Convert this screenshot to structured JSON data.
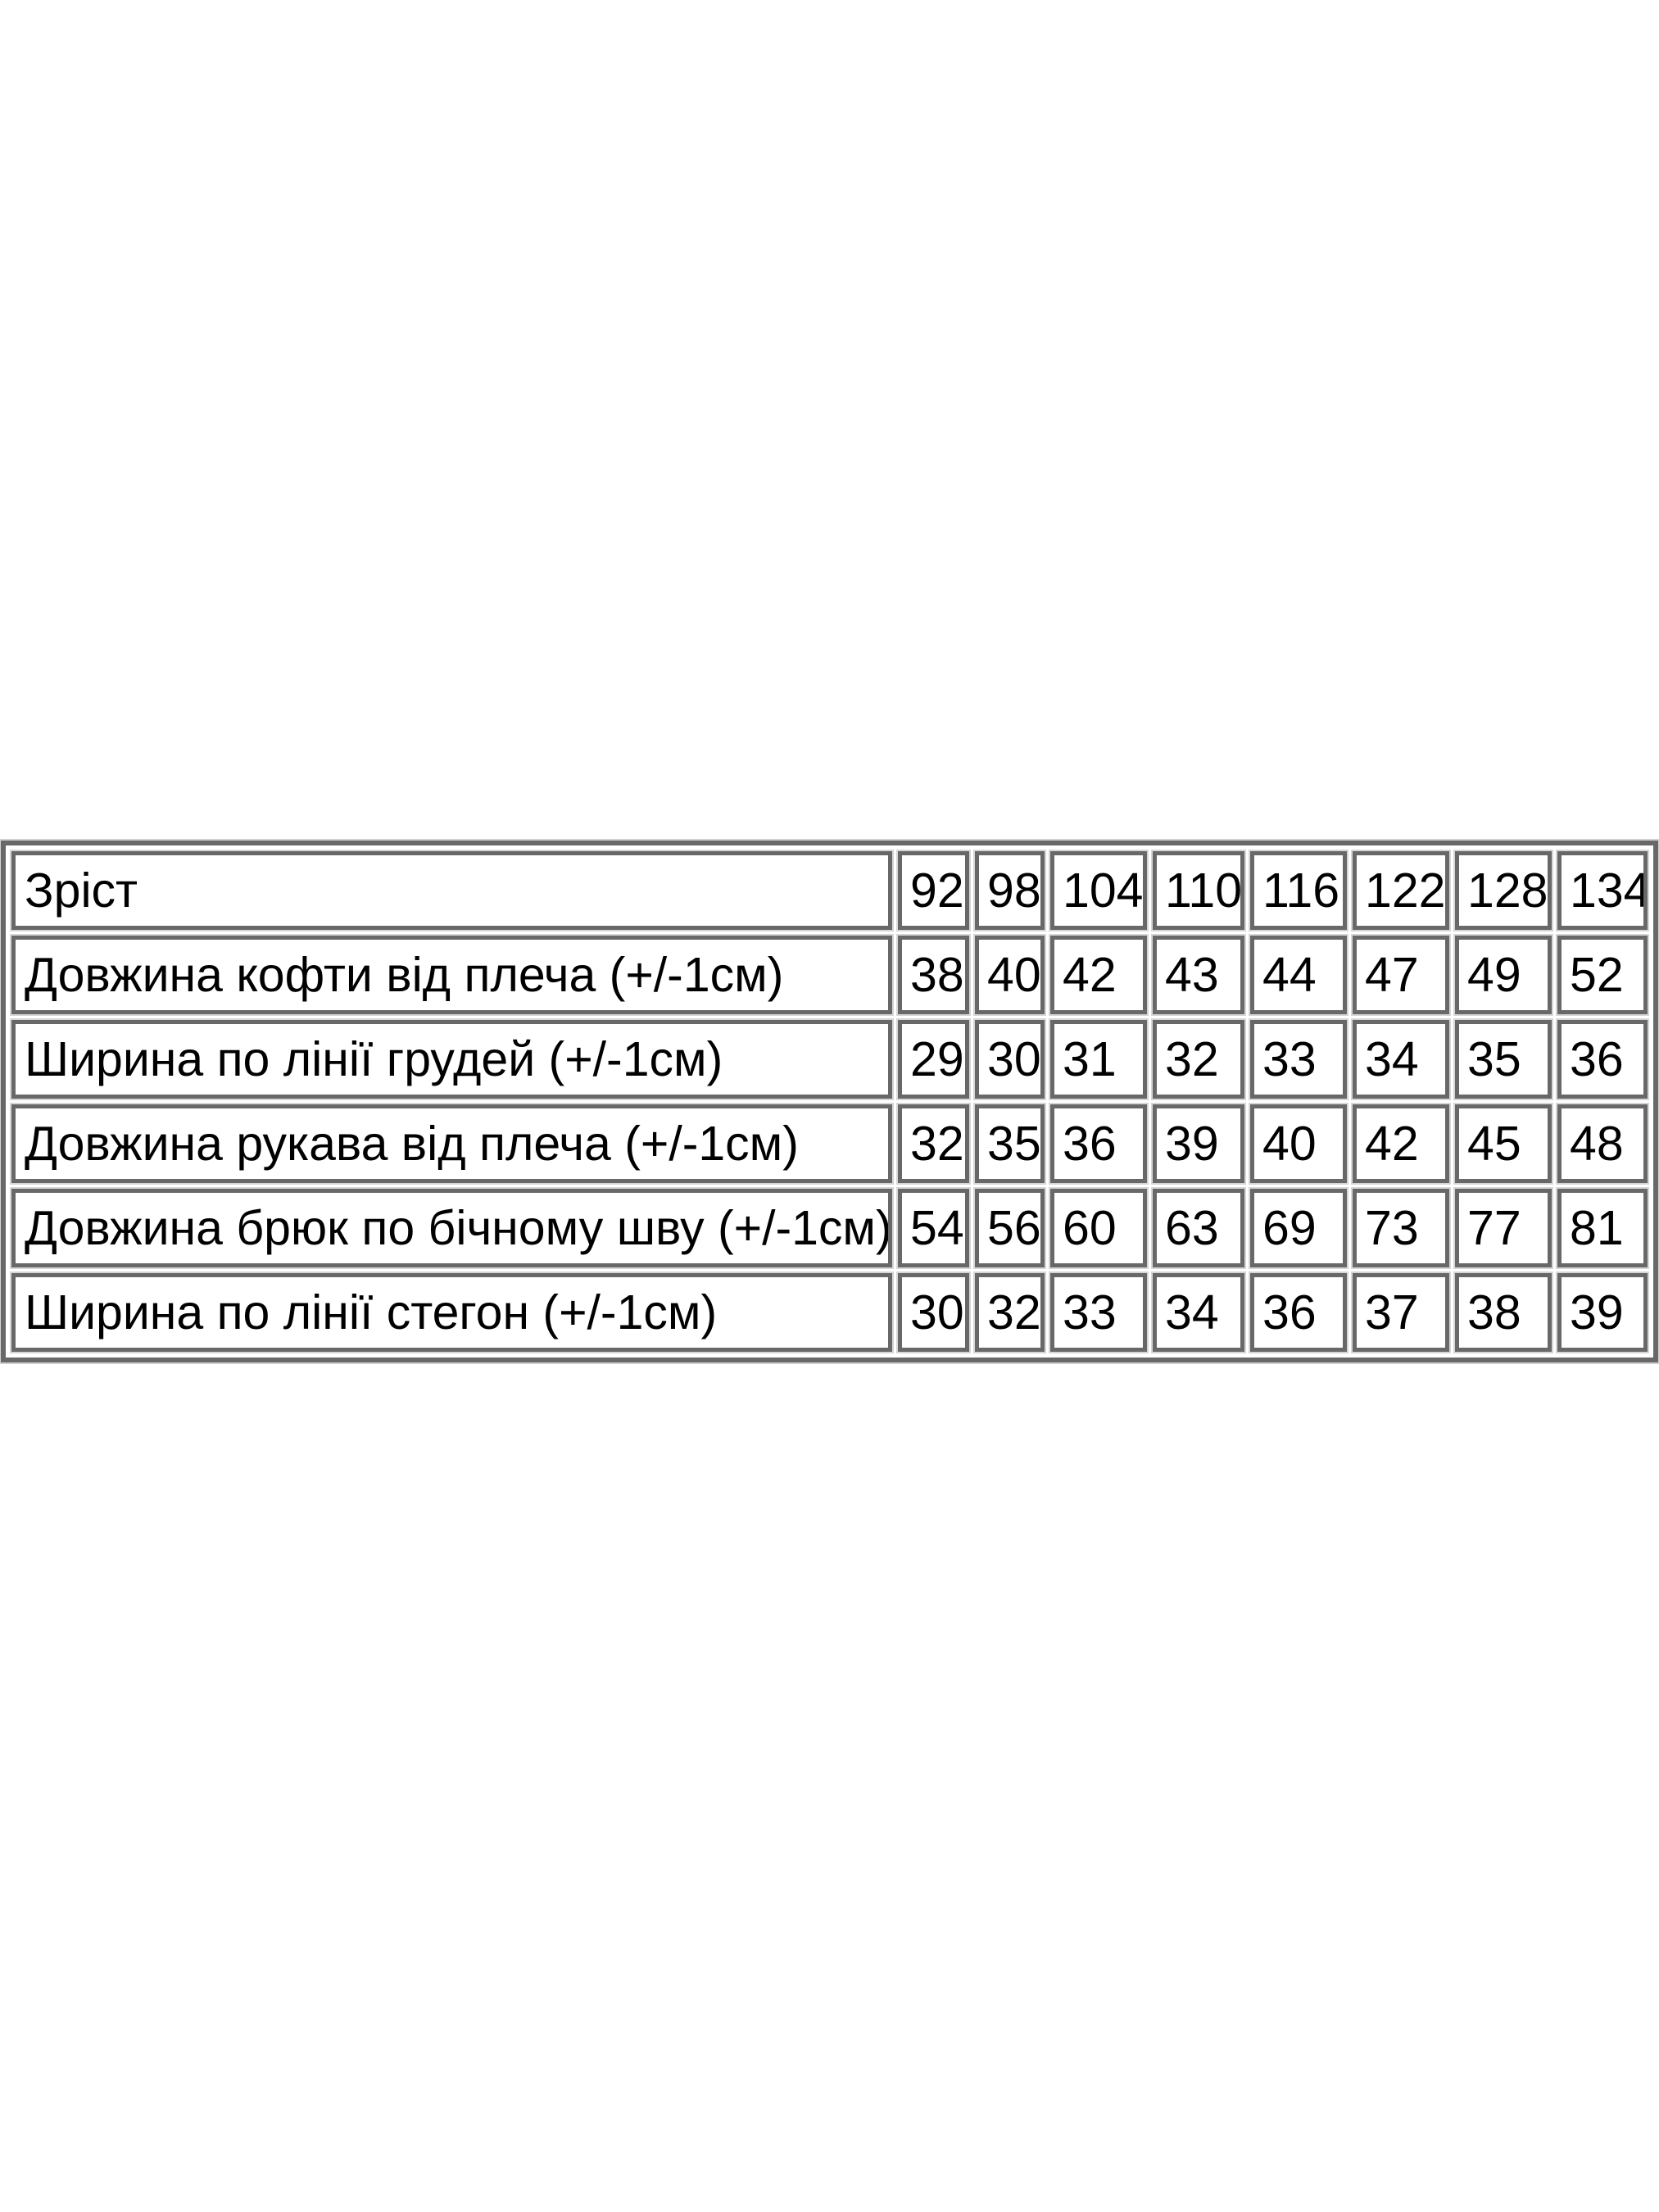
{
  "page": {
    "background_color": "#ffffff",
    "text_color": "#000000",
    "table_border_color": "#686868"
  },
  "chart_data": {
    "type": "table",
    "title": "",
    "header": {
      "label": "Зріст",
      "values": [
        "92",
        "98",
        "104",
        "110",
        "116",
        "122",
        "128",
        "134"
      ]
    },
    "rows": [
      {
        "label": "Довжина кофти від плеча (+/-1см)",
        "values": [
          "38",
          "40",
          "42",
          "43",
          "44",
          "47",
          "49",
          "52"
        ]
      },
      {
        "label": "Ширина по лінії грудей (+/-1см)",
        "values": [
          "29",
          "30",
          "31",
          "32",
          "33",
          "34",
          "35",
          "36"
        ]
      },
      {
        "label": "Довжина рукава від плеча (+/-1см)",
        "values": [
          "32",
          "35",
          "36",
          "39",
          "40",
          "42",
          "45",
          "48"
        ]
      },
      {
        "label": "Довжина брюк по бічному шву (+/-1см)",
        "values": [
          "54",
          "56",
          "60",
          "63",
          "69",
          "73",
          "77",
          "81"
        ]
      },
      {
        "label": "Ширина по лінії стегон (+/-1см)",
        "values": [
          "30",
          "32",
          "33",
          "34",
          "36",
          "37",
          "38",
          "39"
        ]
      }
    ]
  }
}
